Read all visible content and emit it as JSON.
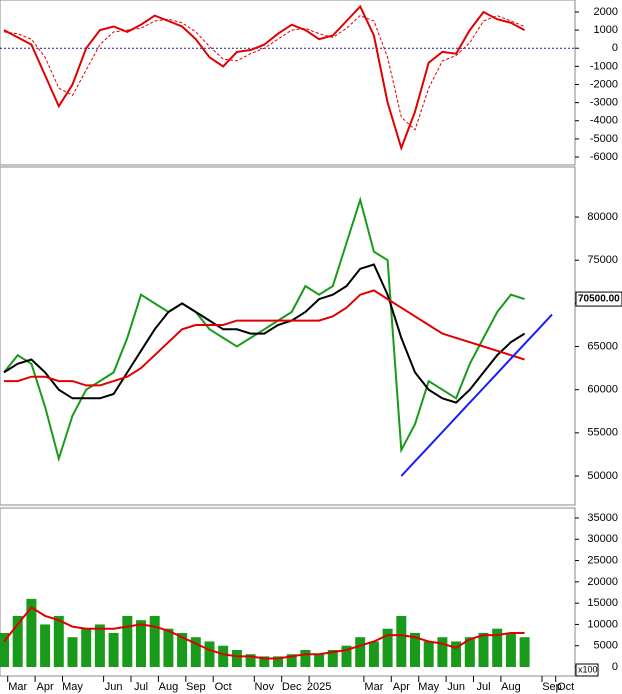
{
  "chart_data": [
    {
      "type": "line",
      "ylim": [
        -6440,
        2660
      ],
      "yticks": [
        2000,
        1000,
        0,
        -1000,
        -2000,
        -3000,
        -4000,
        -5000,
        -6000
      ],
      "zero_line": true,
      "series": [
        {
          "color": "#e00000",
          "dashed": false,
          "values": [
            1000,
            600,
            200,
            -1500,
            -3200,
            -2000,
            0,
            1000,
            1200,
            900,
            1300,
            1800,
            1500,
            1200,
            500,
            -500,
            -1000,
            -200,
            -100,
            200,
            800,
            1300,
            1000,
            500,
            700,
            1500,
            2300,
            700,
            -3000,
            -5500,
            -3500,
            -800,
            -200,
            -300,
            1000,
            2000,
            1600,
            1400,
            1000,
            null,
            null,
            null
          ]
        },
        {
          "color": "#e00000",
          "dashed": true,
          "values": [
            900,
            800,
            500,
            -500,
            -2200,
            -2600,
            -1200,
            200,
            900,
            1000,
            1100,
            1500,
            1600,
            1400,
            900,
            100,
            -600,
            -700,
            -300,
            0,
            500,
            1000,
            1100,
            800,
            600,
            1100,
            1800,
            1500,
            -500,
            -3800,
            -4500,
            -2200,
            -700,
            -400,
            300,
            1500,
            1800,
            1500,
            1200,
            null,
            null,
            null
          ]
        }
      ]
    },
    {
      "type": "line",
      "ylim": [
        46640,
        85800
      ],
      "yticks": [
        50000,
        55000,
        60000,
        65000,
        70000,
        75000,
        80000
      ],
      "last_price": {
        "value": 70500,
        "label": "70500.00"
      },
      "series": [
        {
          "color": "#1a9a1a",
          "dashed": false,
          "values": [
            62000,
            64000,
            63000,
            58000,
            52000,
            57000,
            60000,
            61000,
            62000,
            66000,
            71000,
            70000,
            69000,
            70000,
            69000,
            67000,
            66000,
            65000,
            66000,
            67000,
            68000,
            69000,
            72000,
            71000,
            72000,
            77000,
            82000,
            76000,
            75000,
            53000,
            56000,
            61000,
            60000,
            59000,
            63000,
            66000,
            69000,
            71000,
            70500,
            null,
            null,
            null
          ]
        },
        {
          "color": "#000000",
          "dashed": false,
          "values": [
            62000,
            63000,
            63500,
            62000,
            60000,
            59000,
            59000,
            59000,
            59500,
            62000,
            64500,
            67000,
            69000,
            70000,
            69000,
            68000,
            67000,
            67000,
            66500,
            66500,
            67500,
            68000,
            69000,
            70500,
            71000,
            72000,
            74000,
            74500,
            71000,
            66000,
            62000,
            60000,
            59000,
            58500,
            60000,
            62000,
            64000,
            65500,
            66500,
            null,
            null,
            null
          ]
        },
        {
          "color": "#e00000",
          "dashed": false,
          "values": [
            61000,
            61000,
            61500,
            61500,
            61000,
            61000,
            60500,
            60500,
            61000,
            61500,
            62500,
            64000,
            65500,
            67000,
            67500,
            67500,
            67500,
            68000,
            68000,
            68000,
            68000,
            68000,
            68000,
            68000,
            68500,
            69500,
            71000,
            71500,
            70500,
            69500,
            68500,
            67500,
            66500,
            66000,
            65500,
            65000,
            64500,
            64000,
            63500,
            null,
            null,
            null
          ]
        },
        {
          "color": "#1a1aff",
          "dashed": false,
          "values": [
            null,
            null,
            null,
            null,
            null,
            null,
            null,
            null,
            null,
            null,
            null,
            null,
            null,
            null,
            null,
            null,
            null,
            null,
            null,
            null,
            null,
            null,
            null,
            null,
            null,
            null,
            null,
            null,
            null,
            50000,
            51700,
            53400,
            55100,
            56800,
            58500,
            60200,
            61900,
            63600,
            65300,
            67000,
            68700,
            null
          ]
        }
      ]
    },
    {
      "type": "bar",
      "ylim": [
        -2110,
        37350
      ],
      "yticks": [
        0,
        5000,
        10000,
        15000,
        20000,
        25000,
        30000,
        35000
      ],
      "unit_label": "x100",
      "color": "#1a9a1a",
      "categories": [
        null,
        "Mar",
        null,
        "Apr",
        null,
        "May",
        null,
        null,
        "Jun",
        null,
        "Jul",
        null,
        "Aug",
        null,
        "Sep",
        null,
        "Oct",
        null,
        null,
        "Nov",
        null,
        "Dec",
        null,
        "2025",
        null,
        null,
        null,
        "Mar",
        null,
        "Apr",
        null,
        "May",
        null,
        "Jun",
        null,
        "Jul",
        null,
        "Aug",
        null,
        null,
        "Sep",
        "Oct"
      ],
      "values": [
        8000,
        12000,
        16000,
        10000,
        12000,
        7000,
        9000,
        10000,
        8000,
        12000,
        11000,
        12000,
        9000,
        8000,
        7000,
        6000,
        5000,
        4000,
        3000,
        2500,
        2500,
        3000,
        4000,
        3000,
        4000,
        5000,
        7000,
        6000,
        9000,
        12000,
        8000,
        6000,
        7000,
        6000,
        7000,
        8000,
        9000,
        8000,
        7000,
        null,
        null,
        null
      ],
      "series": [
        {
          "color": "#e00000",
          "dashed": false,
          "values": [
            6000,
            10000,
            14000,
            12000,
            11000,
            9500,
            9000,
            9000,
            9000,
            9500,
            10000,
            9500,
            8500,
            7000,
            5500,
            4000,
            3000,
            2500,
            2500,
            2000,
            2000,
            2500,
            3000,
            3000,
            3500,
            4000,
            5000,
            6000,
            7500,
            7500,
            7000,
            6000,
            5500,
            4500,
            6500,
            7500,
            7500,
            8000,
            8000,
            null,
            null,
            null
          ]
        }
      ]
    }
  ]
}
